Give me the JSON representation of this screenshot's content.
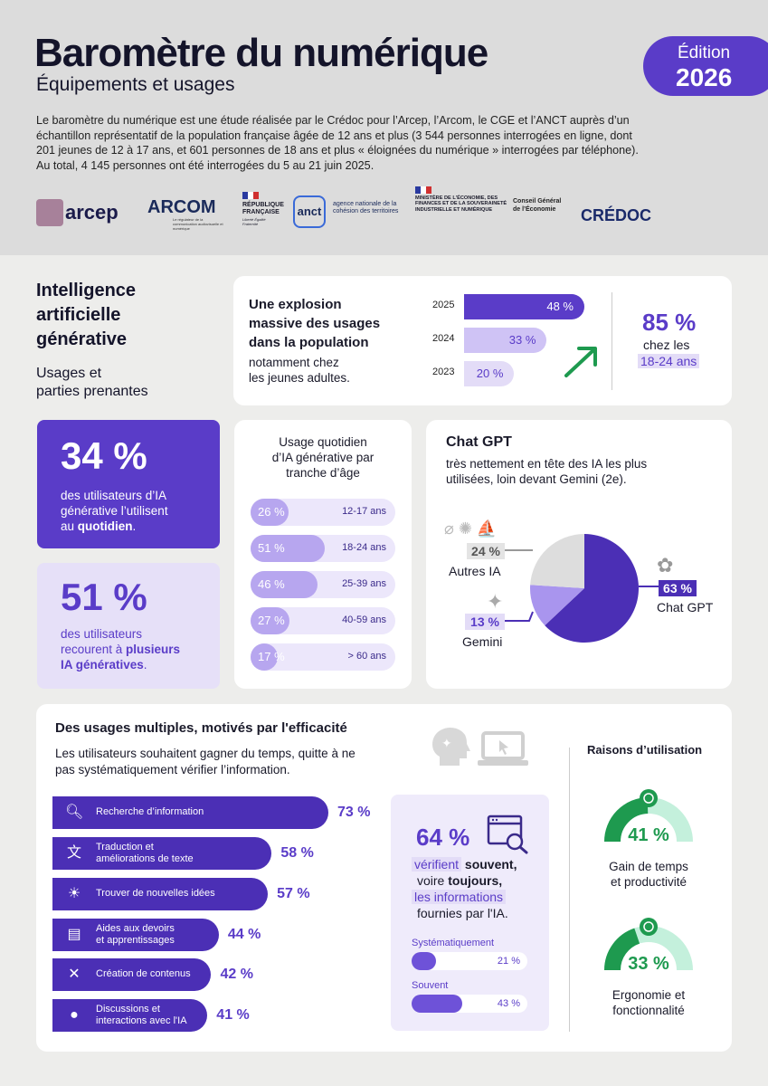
{
  "header": {
    "title": "Baromètre du numérique",
    "subtitle": "Équipements et usages",
    "edition_label": "Édition",
    "edition_year": "2026",
    "intro": "Le baromètre du numérique est une étude réalisée par le Crédoc pour l’Arcep, l’Arcom, le CGE et l’ANCT auprès d’un échantillon représentatif de la population française âgée de 12 ans et plus (3 544 personnes interrogées en ligne, dont 201 jeunes de 12 à 17 ans, et 601 personnes de 18 ans et plus « éloignées du numérique » interrogées par téléphone). Au total, 4 145 personnes ont été interrogées du 5 au 21 juin 2025."
  },
  "logos": {
    "arcep": "arcep",
    "arcom": "ARCOM",
    "arcom_tag": "Le régulateur de la communication audiovisuelle et numérique",
    "rf_1": "RÉPUBLIQUE",
    "rf_2": "FRANÇAISE",
    "rf_motto": "Liberté Égalité Fraternité",
    "anct": "anct",
    "anct_text": "agence nationale de la cohésion des territoires",
    "ministere": "MINISTÈRE DE L'ÉCONOMIE, DES FINANCES ET DE LA SOUVERAINETÉ INDUSTRIELLE ET NUMÉRIQUE",
    "cge": "Conseil Général de l’Économie",
    "credoc": "CRÉDOC"
  },
  "section_ia": {
    "title_1": "Intelligence",
    "title_2": "artificielle",
    "title_3": "générative",
    "subtitle_1": "Usages et",
    "subtitle_2": "parties prenantes"
  },
  "explosion": {
    "title_1": "Une explosion",
    "title_2": "massive des usages",
    "title_3": "dans la population",
    "note_1": "notamment chez",
    "note_2": "les jeunes adultes.",
    "bars": [
      {
        "year": "2025",
        "value": 48,
        "label": "48 %"
      },
      {
        "year": "2024",
        "value": 33,
        "label": "33 %"
      },
      {
        "year": "2023",
        "value": 20,
        "label": "20 %"
      }
    ],
    "young_pct": "85 %",
    "young_1": "chez les",
    "young_2": "18-24 ans"
  },
  "daily": {
    "pct": "34 %",
    "text_1": "des utilisateurs d’IA",
    "text_2": "générative l’utilisent",
    "text_3": "au ",
    "text_bold": "quotidien",
    "text_end": "."
  },
  "multi": {
    "pct": "51 %",
    "text_1": "des utilisateurs",
    "text_2": "recourent à ",
    "text_bold1": "plusieurs",
    "text_bold2": "IA génératives",
    "text_end": "."
  },
  "age_usage": {
    "title_1": "Usage quotidien",
    "title_2": "d’IA générative par",
    "title_3": "tranche d’âge",
    "rows": [
      {
        "pct": "26 %",
        "value": 26,
        "label": "12-17 ans"
      },
      {
        "pct": "51 %",
        "value": 51,
        "label": "18-24 ans"
      },
      {
        "pct": "46 %",
        "value": 46,
        "label": "25-39 ans"
      },
      {
        "pct": "27 %",
        "value": 27,
        "label": "40-59 ans"
      },
      {
        "pct": "17 %",
        "value": 17,
        "label": "> 60 ans"
      }
    ]
  },
  "chatgpt": {
    "title": "Chat GPT",
    "desc_1": "très nettement en tête des IA les plus",
    "desc_2": "utilisées, loin devant Gemini (2e).",
    "slices": [
      {
        "name": "Chat GPT",
        "value": 63,
        "label": "63 %",
        "color": "#4b2fb5"
      },
      {
        "name": "Gemini",
        "value": 13,
        "label": "13 %",
        "color": "#a995ee"
      },
      {
        "name": "Autres IA",
        "value": 24,
        "label": "24 %",
        "color": "#dddddd"
      }
    ]
  },
  "usages": {
    "title": "Des usages multiples, motivés par l'efficacité",
    "desc_1": "Les utilisateurs souhaitent gagner du temps, quitte à ne",
    "desc_2": "pas systématiquement vérifier l’information.",
    "rows": [
      {
        "l1": "Recherche d’information",
        "l2": "",
        "value": 73,
        "pct": "73 %",
        "icon": "search-icon"
      },
      {
        "l1": "Traduction et",
        "l2": "améliorations de texte",
        "value": 58,
        "pct": "58 %",
        "icon": "translate-icon"
      },
      {
        "l1": "Trouver de nouvelles idées",
        "l2": "",
        "value": 57,
        "pct": "57 %",
        "icon": "lightbulb-icon"
      },
      {
        "l1": "Aides aux devoirs",
        "l2": "et apprentissages",
        "value": 44,
        "pct": "44 %",
        "icon": "book-icon"
      },
      {
        "l1": "Création de contenus",
        "l2": "",
        "value": 42,
        "pct": "42 %",
        "icon": "tools-icon"
      },
      {
        "l1": "Discussions et",
        "l2": "interactions avec l'IA",
        "value": 41,
        "pct": "41 %",
        "icon": "chat-icon"
      }
    ]
  },
  "verify": {
    "pct": "64 %",
    "w1": "vérifient",
    "w2": " souvent,",
    "w3": "voire ",
    "w4": "toujours,",
    "w5": "les informations",
    "w6": "fournies par l'IA.",
    "bars": [
      {
        "label": "Systématiquement",
        "value": 21,
        "pct": "21 %"
      },
      {
        "label": "Souvent",
        "value": 43,
        "pct": "43 %"
      }
    ]
  },
  "reasons": {
    "title": "Raisons d’utilisation",
    "items": [
      {
        "pct": "41 %",
        "value": 41,
        "l1": "Gain de temps",
        "l2": "et productivité",
        "icon": "clock-icon"
      },
      {
        "pct": "33 %",
        "value": 33,
        "l1": "Ergonomie et",
        "l2": "fonctionnalité",
        "icon": "gear-icon"
      }
    ],
    "color": "#1e9a4f",
    "track": "#c4f0dc"
  }
}
